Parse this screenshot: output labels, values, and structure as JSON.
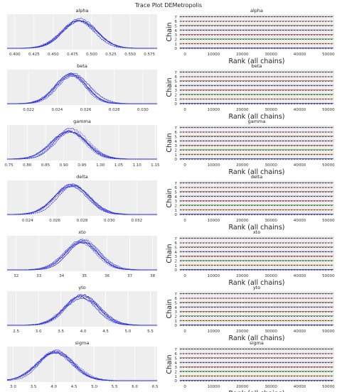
{
  "figure": {
    "title": "Trace Plot DEMetropolis",
    "background": "#ffffff",
    "panel_bg": "#eeeeee",
    "grid_color": "#ffffff",
    "trace_color": "#2a2ad8",
    "rank_chain_colors": [
      "#2a2ad8",
      "#e08a2c",
      "#3a9a3a",
      "#d23a3a",
      "#8a5ac0",
      "#8a5a40",
      "#e080c0",
      "#808080"
    ]
  },
  "chart_data": [
    {
      "type": "line",
      "title": "alpha",
      "xlim": [
        0.39,
        0.585
      ],
      "xticks": [
        0.4,
        0.425,
        0.45,
        0.475,
        0.5,
        0.525,
        0.55,
        0.575
      ],
      "tick_labels": [
        "0.400",
        "0.425",
        "0.450",
        "0.475",
        "0.500",
        "0.525",
        "0.550",
        "0.575"
      ],
      "peak_x": 0.484,
      "sd": 0.022,
      "grid": true
    },
    {
      "type": "line",
      "title": "beta",
      "xlim": [
        0.0205,
        0.031
      ],
      "xticks": [
        0.022,
        0.024,
        0.026,
        0.028,
        0.03
      ],
      "tick_labels": [
        "0.022",
        "0.024",
        "0.026",
        "0.028",
        "0.030"
      ],
      "peak_x": 0.025,
      "sd": 0.0011,
      "grid": true
    },
    {
      "type": "line",
      "title": "gamma",
      "xlim": [
        0.745,
        1.155
      ],
      "xticks": [
        0.75,
        0.8,
        0.85,
        0.9,
        0.95,
        1.0,
        1.05,
        1.1,
        1.15
      ],
      "tick_labels": [
        "0.75",
        "0.80",
        "0.85",
        "0.90",
        "0.95",
        "1.00",
        "1.05",
        "1.10",
        "1.15"
      ],
      "peak_x": 0.915,
      "sd": 0.045,
      "grid": true
    },
    {
      "type": "line",
      "title": "delta",
      "xlim": [
        0.0225,
        0.0335
      ],
      "xticks": [
        0.024,
        0.026,
        0.028,
        0.03,
        0.032
      ],
      "tick_labels": [
        "0.024",
        "0.026",
        "0.028",
        "0.030",
        "0.032"
      ],
      "peak_x": 0.0273,
      "sd": 0.0012,
      "grid": true
    },
    {
      "type": "line",
      "title": "xto",
      "xlim": [
        31.6,
        38.2
      ],
      "xticks": [
        32,
        33,
        34,
        35,
        36,
        37,
        38
      ],
      "tick_labels": [
        "32",
        "33",
        "34",
        "35",
        "36",
        "37",
        "38"
      ],
      "peak_x": 34.9,
      "sd": 0.7,
      "grid": true
    },
    {
      "type": "line",
      "title": "yto",
      "xlim": [
        2.3,
        5.65
      ],
      "xticks": [
        2.5,
        3.0,
        3.5,
        4.0,
        4.5,
        5.0,
        5.5
      ],
      "tick_labels": [
        "2.5",
        "3.0",
        "3.5",
        "4.0",
        "4.5",
        "5.0",
        "5.5"
      ],
      "peak_x": 3.95,
      "sd": 0.38,
      "grid": true
    },
    {
      "type": "line",
      "title": "sigma",
      "xlim": [
        2.85,
        6.55
      ],
      "xticks": [
        3.0,
        3.5,
        4.0,
        4.5,
        5.0,
        5.5,
        6.0,
        6.5
      ],
      "tick_labels": [
        "3.0",
        "3.5",
        "4.0",
        "4.5",
        "5.0",
        "5.5",
        "6.0",
        "6.5"
      ],
      "peak_x": 4.05,
      "sd": 0.42,
      "grid": true
    }
  ],
  "rank_plots": {
    "titles": [
      "alpha",
      "beta",
      "gamma",
      "delta",
      "xto",
      "yto",
      "sigma"
    ],
    "xlabel": "Rank (all chains)",
    "ylabel": "Chain",
    "xlim": [
      -2000,
      52000
    ],
    "xticks": [
      0,
      10000,
      20000,
      30000,
      40000,
      50000
    ],
    "xtick_labels": [
      "0",
      "10000",
      "20000",
      "30000",
      "40000",
      "50000"
    ],
    "ylim": [
      -0.3,
      7.6
    ],
    "yticks": [
      0,
      1,
      2,
      3,
      4,
      5,
      6,
      7
    ],
    "ytick_labels": [
      "0",
      "1",
      "2",
      "3",
      "4",
      "5",
      "6",
      "7"
    ]
  }
}
